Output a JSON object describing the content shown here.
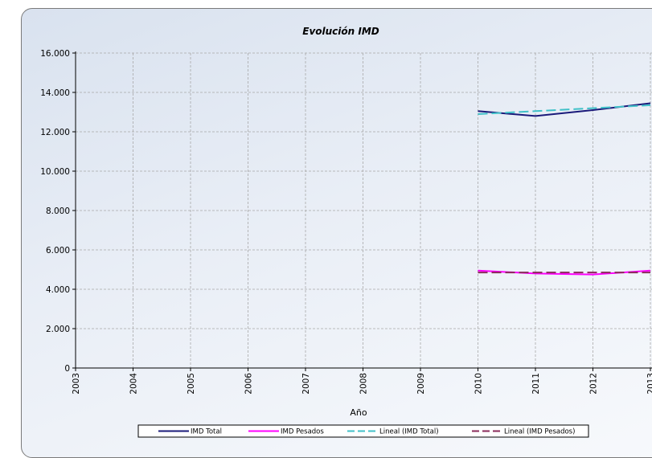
{
  "chart_data": {
    "type": "line",
    "title": "Evolución IMD",
    "xlabel": "Año",
    "ylabel": "",
    "x": [
      "2003",
      "2004",
      "2005",
      "2006",
      "2007",
      "2008",
      "2009",
      "2010",
      "2011",
      "2012",
      "2013"
    ],
    "ylim": [
      0,
      16000
    ],
    "yticks": [
      "0",
      "2.000",
      "4.000",
      "6.000",
      "8.000",
      "10.000",
      "12.000",
      "14.000",
      "16.000"
    ],
    "grid": true,
    "legend_position": "bottom",
    "series": [
      {
        "name": "IMD Total",
        "color": "#1a1a7a",
        "dash": false,
        "values": [
          null,
          null,
          null,
          null,
          null,
          null,
          null,
          13050,
          12800,
          13100,
          13450
        ]
      },
      {
        "name": "IMD Pesados",
        "color": "#ff00ff",
        "dash": false,
        "values": [
          null,
          null,
          null,
          null,
          null,
          null,
          null,
          4950,
          4800,
          4750,
          4950
        ]
      },
      {
        "name": "Lineal (IMD Total)",
        "color": "#40c0c8",
        "dash": true,
        "values": [
          null,
          null,
          null,
          null,
          null,
          null,
          null,
          12900,
          13050,
          13200,
          13350
        ]
      },
      {
        "name": "Lineal (IMD Pesados)",
        "color": "#8a2a5a",
        "dash": true,
        "values": [
          null,
          null,
          null,
          null,
          null,
          null,
          null,
          4850,
          4850,
          4850,
          4850
        ]
      }
    ]
  }
}
